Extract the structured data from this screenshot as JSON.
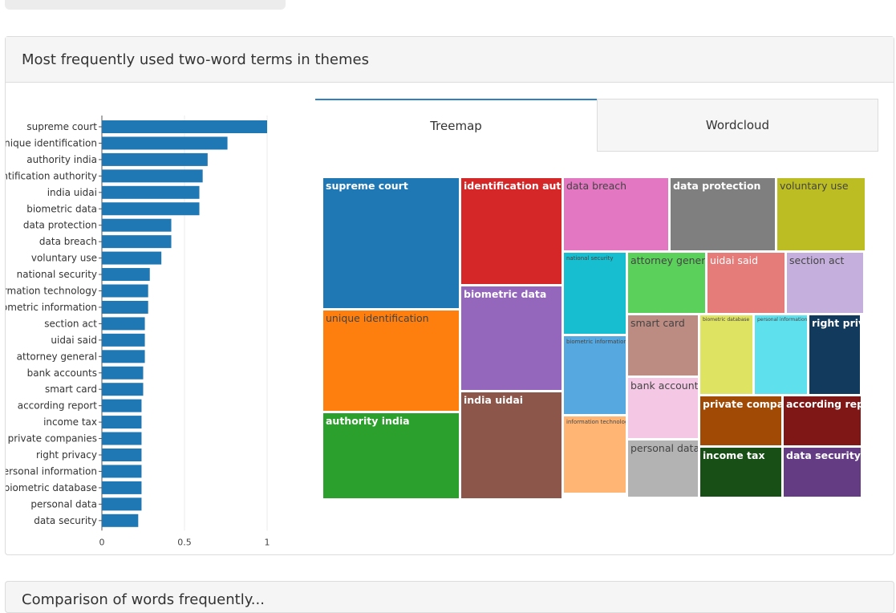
{
  "panel": {
    "title": "Most frequently used two-word terms in themes"
  },
  "tabs": [
    {
      "label": "Treemap",
      "active": true
    },
    {
      "label": "Wordcloud",
      "active": false
    }
  ],
  "bottom_panel": {
    "title": "Comparison of words frequently..."
  },
  "chart_data": [
    {
      "type": "bar",
      "orientation": "horizontal",
      "categories": [
        "supreme court",
        "unique identification",
        "authority india",
        "identification authority",
        "india uidai",
        "biometric data",
        "data protection",
        "data breach",
        "voluntary use",
        "national security",
        "information technology",
        "biometric information",
        "section act",
        "uidai said",
        "attorney general",
        "bank accounts",
        "smart card",
        "according report",
        "income tax",
        "private companies",
        "right privacy",
        "personal information",
        "biometric database",
        "personal data",
        "data security"
      ],
      "values": [
        1.0,
        0.76,
        0.64,
        0.61,
        0.59,
        0.59,
        0.42,
        0.42,
        0.36,
        0.29,
        0.28,
        0.28,
        0.26,
        0.26,
        0.26,
        0.25,
        0.25,
        0.24,
        0.24,
        0.24,
        0.24,
        0.24,
        0.24,
        0.24,
        0.22
      ],
      "xlim": [
        0,
        1
      ],
      "xticks": [
        "0",
        "0.5",
        "1"
      ],
      "color": "#1f77b4",
      "grid": true
    },
    {
      "type": "treemap",
      "items": [
        {
          "label": "supreme court",
          "value": 1.0,
          "color": "#1f77b4",
          "text_color": "#ffffff"
        },
        {
          "label": "unique identification",
          "value": 0.76,
          "color": "#ff7f0e",
          "text_color": "#444444"
        },
        {
          "label": "authority india",
          "value": 0.64,
          "color": "#2ca02c",
          "text_color": "#ffffff"
        },
        {
          "label": "identification authority",
          "value": 0.61,
          "color": "#d62728",
          "text_color": "#ffffff"
        },
        {
          "label": "biometric data",
          "value": 0.59,
          "color": "#9467bd",
          "text_color": "#ffffff"
        },
        {
          "label": "india uidai",
          "value": 0.59,
          "color": "#8c564b",
          "text_color": "#ffffff"
        },
        {
          "label": "data breach",
          "value": 0.42,
          "color": "#e377c2",
          "text_color": "#444444"
        },
        {
          "label": "data protection",
          "value": 0.42,
          "color": "#7f7f7f",
          "text_color": "#ffffff"
        },
        {
          "label": "voluntary use",
          "value": 0.36,
          "color": "#bcbd22",
          "text_color": "#444444"
        },
        {
          "label": "national security",
          "value": 0.29,
          "color": "#17becf",
          "text_color": "#444444"
        },
        {
          "label": "biometric information",
          "value": 0.28,
          "color": "#56a8e0",
          "text_color": "#444444"
        },
        {
          "label": "information technology",
          "value": 0.28,
          "color": "#ffb574",
          "text_color": "#444444"
        },
        {
          "label": "attorney general",
          "value": 0.26,
          "color": "#5bd15b",
          "text_color": "#444444"
        },
        {
          "label": "uidai said",
          "value": 0.26,
          "color": "#e57c7a",
          "text_color": "#ffffff"
        },
        {
          "label": "section act",
          "value": 0.26,
          "color": "#c5b0dd",
          "text_color": "#444444"
        },
        {
          "label": "smart card",
          "value": 0.25,
          "color": "#bc8b81",
          "text_color": "#444444"
        },
        {
          "label": "bank accounts",
          "value": 0.25,
          "color": "#f4c8e4",
          "text_color": "#444444"
        },
        {
          "label": "personal data",
          "value": 0.24,
          "color": "#b3b3b3",
          "text_color": "#444444"
        },
        {
          "label": "biometric database",
          "value": 0.24,
          "color": "#dfe362",
          "text_color": "#444444"
        },
        {
          "label": "personal information",
          "value": 0.24,
          "color": "#5ee0ed",
          "text_color": "#444444"
        },
        {
          "label": "right privacy",
          "value": 0.24,
          "color": "#123a5c",
          "text_color": "#ffffff"
        },
        {
          "label": "private companies",
          "value": 0.24,
          "color": "#a04a06",
          "text_color": "#ffffff"
        },
        {
          "label": "according report",
          "value": 0.24,
          "color": "#7e1716",
          "text_color": "#ffffff"
        },
        {
          "label": "income tax",
          "value": 0.24,
          "color": "#174f17",
          "text_color": "#ffffff"
        },
        {
          "label": "data security",
          "value": 0.22,
          "color": "#633c84",
          "text_color": "#ffffff"
        }
      ]
    }
  ]
}
